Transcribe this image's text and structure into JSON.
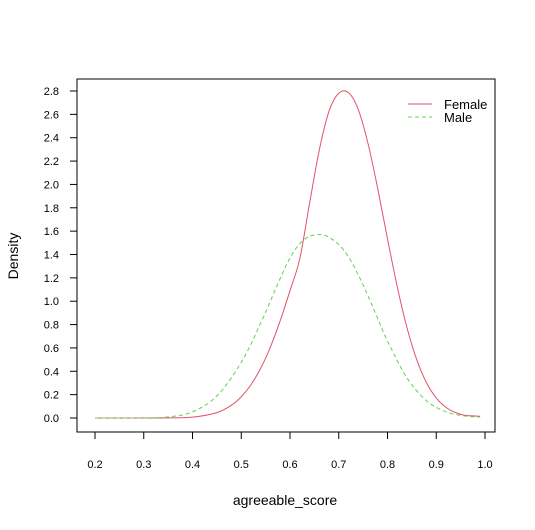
{
  "chart_data": {
    "type": "line",
    "title": "",
    "xlabel": "agreeable_score",
    "ylabel": "Density",
    "xlim": [
      0.2,
      1.0
    ],
    "ylim": [
      0.0,
      2.8
    ],
    "xticks": [
      0.2,
      0.3,
      0.4,
      0.5,
      0.6,
      0.7,
      0.8,
      0.9,
      1.0
    ],
    "xtick_labels": [
      "0.2",
      "0.3",
      "0.4",
      "0.5",
      "0.6",
      "0.7",
      "0.8",
      "0.9",
      "1.0"
    ],
    "yticks": [
      0.0,
      0.2,
      0.4,
      0.6,
      0.8,
      1.0,
      1.2,
      1.4,
      1.6,
      1.8,
      2.0,
      2.2,
      2.4,
      2.6,
      2.8
    ],
    "ytick_labels": [
      "0.0",
      "0.2",
      "0.4",
      "0.6",
      "0.8",
      "1.0",
      "1.2",
      "1.4",
      "1.6",
      "1.8",
      "2.0",
      "2.2",
      "2.4",
      "2.6",
      "2.8"
    ],
    "legend_position": "top-right",
    "series": [
      {
        "name": "Female",
        "color": "#DF536B",
        "style": "solid",
        "x": [
          0.2,
          0.25,
          0.3,
          0.35,
          0.4,
          0.45,
          0.48,
          0.5,
          0.52,
          0.54,
          0.56,
          0.58,
          0.6,
          0.62,
          0.64,
          0.66,
          0.68,
          0.7,
          0.72,
          0.74,
          0.76,
          0.78,
          0.8,
          0.82,
          0.84,
          0.86,
          0.88,
          0.9,
          0.92,
          0.94,
          0.96,
          0.99
        ],
        "y": [
          0.0,
          0.0,
          0.0,
          0.001,
          0.007,
          0.046,
          0.11,
          0.182,
          0.285,
          0.427,
          0.61,
          0.834,
          1.09,
          1.363,
          1.834,
          2.293,
          2.627,
          2.781,
          2.786,
          2.642,
          2.351,
          1.963,
          1.534,
          1.124,
          0.773,
          0.499,
          0.302,
          0.172,
          0.091,
          0.046,
          0.022,
          0.015
        ]
      },
      {
        "name": "Male",
        "color": "#61D04F",
        "style": "dashed",
        "x": [
          0.2,
          0.25,
          0.3,
          0.35,
          0.4,
          0.45,
          0.5,
          0.54,
          0.58,
          0.6,
          0.62,
          0.64,
          0.66,
          0.67,
          0.68,
          0.7,
          0.72,
          0.74,
          0.76,
          0.78,
          0.8,
          0.84,
          0.88,
          0.92,
          0.96,
          0.99
        ],
        "y": [
          0.0,
          0.0,
          0.001,
          0.009,
          0.053,
          0.189,
          0.476,
          0.814,
          1.196,
          1.371,
          1.492,
          1.556,
          1.57,
          1.567,
          1.547,
          1.486,
          1.379,
          1.227,
          1.046,
          0.851,
          0.659,
          0.343,
          0.148,
          0.053,
          0.016,
          0.009
        ]
      }
    ]
  }
}
